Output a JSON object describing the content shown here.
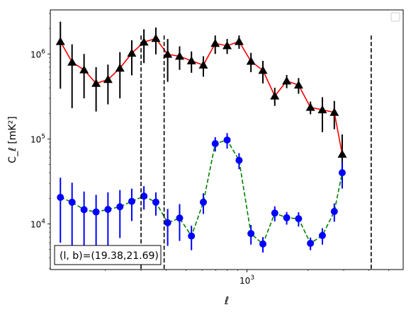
{
  "chart_data": {
    "type": "line",
    "x_scale": "log",
    "y_scale": "log",
    "xlim": [
      107,
      5900
    ],
    "ylim": [
      2900,
      3300000
    ],
    "xlabel": "ℓ",
    "ylabel": "C_ℓ  [mK²]",
    "x_tick_labels": [
      {
        "value": 1000,
        "base": "10",
        "exp": "3"
      }
    ],
    "y_tick_labels": [
      {
        "value": 10000,
        "base": "10",
        "exp": "4"
      },
      {
        "value": 100000,
        "base": "10",
        "exp": "5"
      },
      {
        "value": 1000000,
        "base": "10",
        "exp": "6"
      }
    ],
    "legend": "upper right, empty",
    "annotation": "(l, b)=(19.38,21.69)",
    "vlines": [
      {
        "x": 300,
        "ymin": 2900,
        "ymax": 1650000
      },
      {
        "x": 390,
        "ymin": 2900,
        "ymax": 1650000
      },
      {
        "x": 4100,
        "ymin": 2900,
        "ymax": 1650000
      }
    ],
    "series": [
      {
        "marker": "triangle",
        "color": "#000000",
        "line_color": "#ff0000",
        "line_style": "solid",
        "points": [
          {
            "x": 120,
            "y": 1400000,
            "lo": 390000,
            "hi": 2400000
          },
          {
            "x": 137,
            "y": 800000,
            "lo": 230000,
            "hi": 1300000
          },
          {
            "x": 157,
            "y": 650000,
            "lo": 300000,
            "hi": 1000000
          },
          {
            "x": 180,
            "y": 450000,
            "lo": 210000,
            "hi": 700000
          },
          {
            "x": 206,
            "y": 500000,
            "lo": 255000,
            "hi": 750000
          },
          {
            "x": 236,
            "y": 680000,
            "lo": 300000,
            "hi": 1050000
          },
          {
            "x": 270,
            "y": 1020000,
            "lo": 560000,
            "hi": 1450000
          },
          {
            "x": 310,
            "y": 1380000,
            "lo": 780000,
            "hi": 1950000
          },
          {
            "x": 355,
            "y": 1520000,
            "lo": 990000,
            "hi": 2050000
          },
          {
            "x": 406,
            "y": 990000,
            "lo": 470000,
            "hi": 1500000
          },
          {
            "x": 465,
            "y": 940000,
            "lo": 650000,
            "hi": 1230000
          },
          {
            "x": 532,
            "y": 830000,
            "lo": 600000,
            "hi": 1070000
          },
          {
            "x": 609,
            "y": 740000,
            "lo": 540000,
            "hi": 940000
          },
          {
            "x": 697,
            "y": 1330000,
            "lo": 1000000,
            "hi": 1650000
          },
          {
            "x": 798,
            "y": 1250000,
            "lo": 1000000,
            "hi": 1500000
          },
          {
            "x": 914,
            "y": 1400000,
            "lo": 1150000,
            "hi": 1650000
          },
          {
            "x": 1046,
            "y": 820000,
            "lo": 610000,
            "hi": 1030000
          },
          {
            "x": 1198,
            "y": 640000,
            "lo": 450000,
            "hi": 830000
          },
          {
            "x": 1371,
            "y": 320000,
            "lo": 245000,
            "hi": 400000
          },
          {
            "x": 1570,
            "y": 480000,
            "lo": 395000,
            "hi": 565000
          },
          {
            "x": 1797,
            "y": 430000,
            "lo": 340000,
            "hi": 520000
          },
          {
            "x": 2057,
            "y": 235000,
            "lo": 195000,
            "hi": 275000
          },
          {
            "x": 2355,
            "y": 220000,
            "lo": 120000,
            "hi": 310000
          },
          {
            "x": 2697,
            "y": 205000,
            "lo": 130000,
            "hi": 280000
          },
          {
            "x": 2950,
            "y": 66000,
            "lo": 30000,
            "hi": 113000
          }
        ]
      },
      {
        "marker": "circle",
        "color": "#0000ff",
        "line_color": "#008000",
        "line_style": "dashed",
        "points": [
          {
            "x": 120,
            "y": 20500,
            "lo": 6000,
            "hi": 35000
          },
          {
            "x": 137,
            "y": 18000,
            "lo": 5500,
            "hi": 30500
          },
          {
            "x": 157,
            "y": 14700,
            "lo": 5500,
            "hi": 24000
          },
          {
            "x": 180,
            "y": 13800,
            "lo": 5400,
            "hi": 22000
          },
          {
            "x": 206,
            "y": 14800,
            "lo": 5600,
            "hi": 23500
          },
          {
            "x": 236,
            "y": 15900,
            "lo": 6800,
            "hi": 25000
          },
          {
            "x": 270,
            "y": 18400,
            "lo": 10800,
            "hi": 26000
          },
          {
            "x": 310,
            "y": 21200,
            "lo": 14700,
            "hi": 27800
          },
          {
            "x": 355,
            "y": 18000,
            "lo": 12500,
            "hi": 23500
          },
          {
            "x": 406,
            "y": 10300,
            "lo": 5500,
            "hi": 15000
          },
          {
            "x": 465,
            "y": 11700,
            "lo": 6300,
            "hi": 17100
          },
          {
            "x": 532,
            "y": 7200,
            "lo": 4900,
            "hi": 9500
          },
          {
            "x": 609,
            "y": 18000,
            "lo": 13100,
            "hi": 22900
          },
          {
            "x": 697,
            "y": 88000,
            "lo": 71000,
            "hi": 105000
          },
          {
            "x": 798,
            "y": 97000,
            "lo": 77000,
            "hi": 117000
          },
          {
            "x": 914,
            "y": 56000,
            "lo": 44000,
            "hi": 68000
          },
          {
            "x": 1046,
            "y": 7700,
            "lo": 5700,
            "hi": 9700
          },
          {
            "x": 1198,
            "y": 5800,
            "lo": 4600,
            "hi": 7000
          },
          {
            "x": 1371,
            "y": 13400,
            "lo": 10700,
            "hi": 16100
          },
          {
            "x": 1570,
            "y": 11800,
            "lo": 9800,
            "hi": 13800
          },
          {
            "x": 1797,
            "y": 11500,
            "lo": 9300,
            "hi": 13700
          },
          {
            "x": 2057,
            "y": 5900,
            "lo": 4900,
            "hi": 6900
          },
          {
            "x": 2355,
            "y": 7300,
            "lo": 5700,
            "hi": 8900
          },
          {
            "x": 2697,
            "y": 14000,
            "lo": 10600,
            "hi": 17400
          },
          {
            "x": 2950,
            "y": 40000,
            "lo": 26000,
            "hi": 54000
          }
        ]
      }
    ]
  }
}
